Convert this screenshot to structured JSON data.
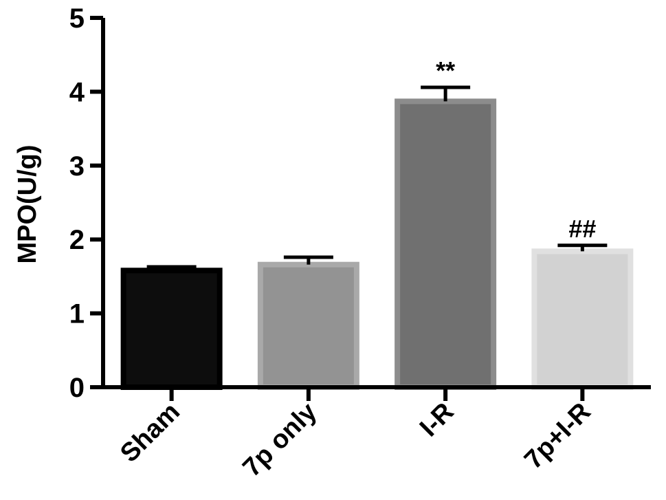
{
  "chart_data": {
    "type": "bar",
    "title": "",
    "xlabel": "",
    "ylabel": "MPO(U/g)",
    "ylim": [
      0,
      5
    ],
    "yticks": [
      0,
      1,
      2,
      3,
      4,
      5
    ],
    "grid": false,
    "legend": "none",
    "categories": [
      "Sham",
      "7p only",
      "I-R",
      "7p+I-R"
    ],
    "values": [
      1.58,
      1.66,
      3.87,
      1.84
    ],
    "error_upper": [
      0.05,
      0.1,
      0.19,
      0.08
    ],
    "annotations": [
      "",
      "",
      "**",
      "##"
    ],
    "bar_colors": [
      "#0d0d0d",
      "#939393",
      "#707070",
      "#d2d2d2"
    ],
    "bar_edge_colors": [
      "#000000",
      "#a9a9a9",
      "#8c8c8c",
      "#e0e0e0"
    ]
  }
}
